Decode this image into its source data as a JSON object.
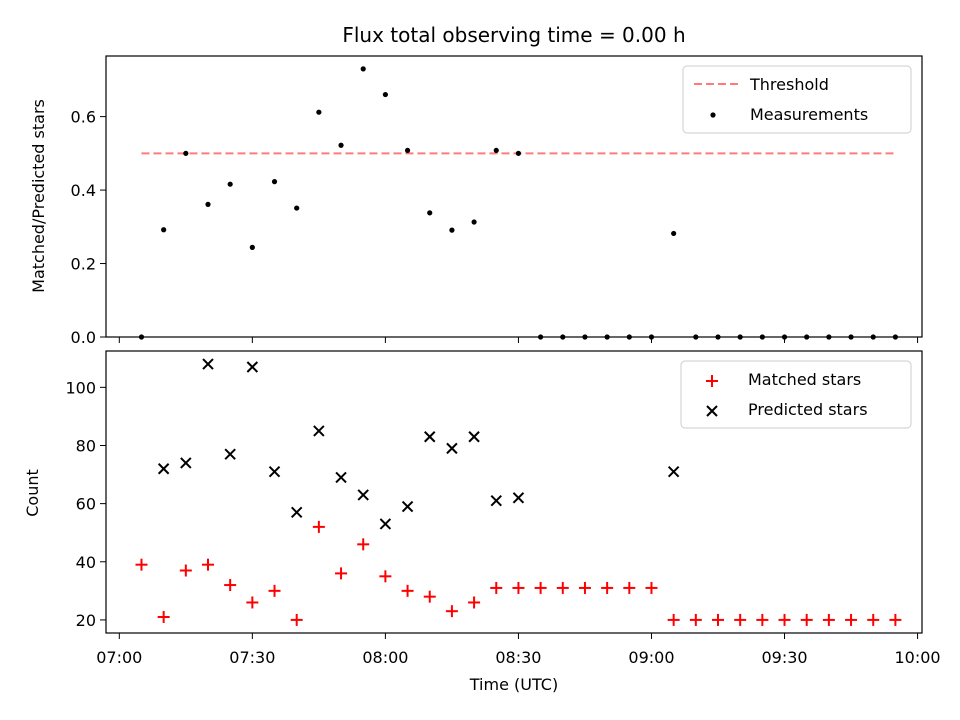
{
  "chart_data": {
    "title": "Flux total observing time = 0.00 h",
    "xlabel": "Time (UTC)",
    "x_ticks": [
      "07:00",
      "07:30",
      "08:00",
      "08:30",
      "09:00",
      "09:30",
      "10:00"
    ],
    "x_tick_minutes": [
      0,
      30,
      60,
      90,
      120,
      150,
      180
    ],
    "xlim_minutes_after_07_00": [
      -3,
      181
    ],
    "times": [
      "07:05",
      "07:10",
      "07:15",
      "07:20",
      "07:25",
      "07:30",
      "07:35",
      "07:40",
      "07:45",
      "07:50",
      "07:55",
      "08:00",
      "08:05",
      "08:10",
      "08:15",
      "08:20",
      "08:25",
      "08:30",
      "08:35",
      "08:40",
      "08:45",
      "08:50",
      "08:55",
      "09:00",
      "09:05",
      "09:10",
      "09:15",
      "09:20",
      "09:25",
      "09:30",
      "09:35",
      "09:40",
      "09:45",
      "09:50",
      "09:55"
    ],
    "top": {
      "type": "scatter",
      "ylabel": "Matched/Predicted stars",
      "ylim": [
        0,
        0.765
      ],
      "y_ticks": [
        "0.0",
        "0.2",
        "0.4",
        "0.6"
      ],
      "y_tick_values": [
        0,
        0.2,
        0.4,
        0.6
      ],
      "threshold": {
        "name": "Threshold",
        "value": 0.5,
        "color": "#ff7b7b",
        "x_start": "07:05",
        "x_end": "09:55"
      },
      "measurements": {
        "name": "Measurements",
        "color": "#000000",
        "values": [
          0,
          0.292,
          0.5,
          0.361,
          0.416,
          0.244,
          0.423,
          0.351,
          0.612,
          0.522,
          0.73,
          0.66,
          0.508,
          0.338,
          0.291,
          0.313,
          0.508,
          0.5,
          0,
          0,
          0,
          0,
          0,
          0,
          0.282,
          0,
          0,
          0,
          0,
          0,
          0,
          0,
          0,
          0,
          0
        ]
      },
      "legend_position": "top-right"
    },
    "bottom": {
      "type": "scatter",
      "ylabel": "Count",
      "ylim": [
        15.5,
        112.5
      ],
      "y_ticks": [
        "20",
        "40",
        "60",
        "80",
        "100"
      ],
      "y_tick_values": [
        20,
        40,
        60,
        80,
        100
      ],
      "series": [
        {
          "name": "Matched stars",
          "marker": "+",
          "color": "#ff0000",
          "values": [
            39,
            21,
            37,
            39,
            32,
            26,
            30,
            20,
            52,
            36,
            46,
            35,
            30,
            28,
            23,
            26,
            31,
            31,
            31,
            31,
            31,
            31,
            31,
            31,
            20,
            20,
            20,
            20,
            20,
            20,
            20,
            20,
            20,
            20,
            20
          ]
        },
        {
          "name": "Predicted stars",
          "marker": "x",
          "color": "#000000",
          "values": [
            null,
            72,
            74,
            108,
            77,
            107,
            71,
            57,
            85,
            69,
            63,
            53,
            59,
            83,
            79,
            83,
            61,
            62,
            null,
            null,
            null,
            null,
            null,
            null,
            71,
            null,
            null,
            null,
            null,
            null,
            null,
            null,
            null,
            null,
            null
          ]
        }
      ],
      "legend_position": "top-right"
    }
  }
}
